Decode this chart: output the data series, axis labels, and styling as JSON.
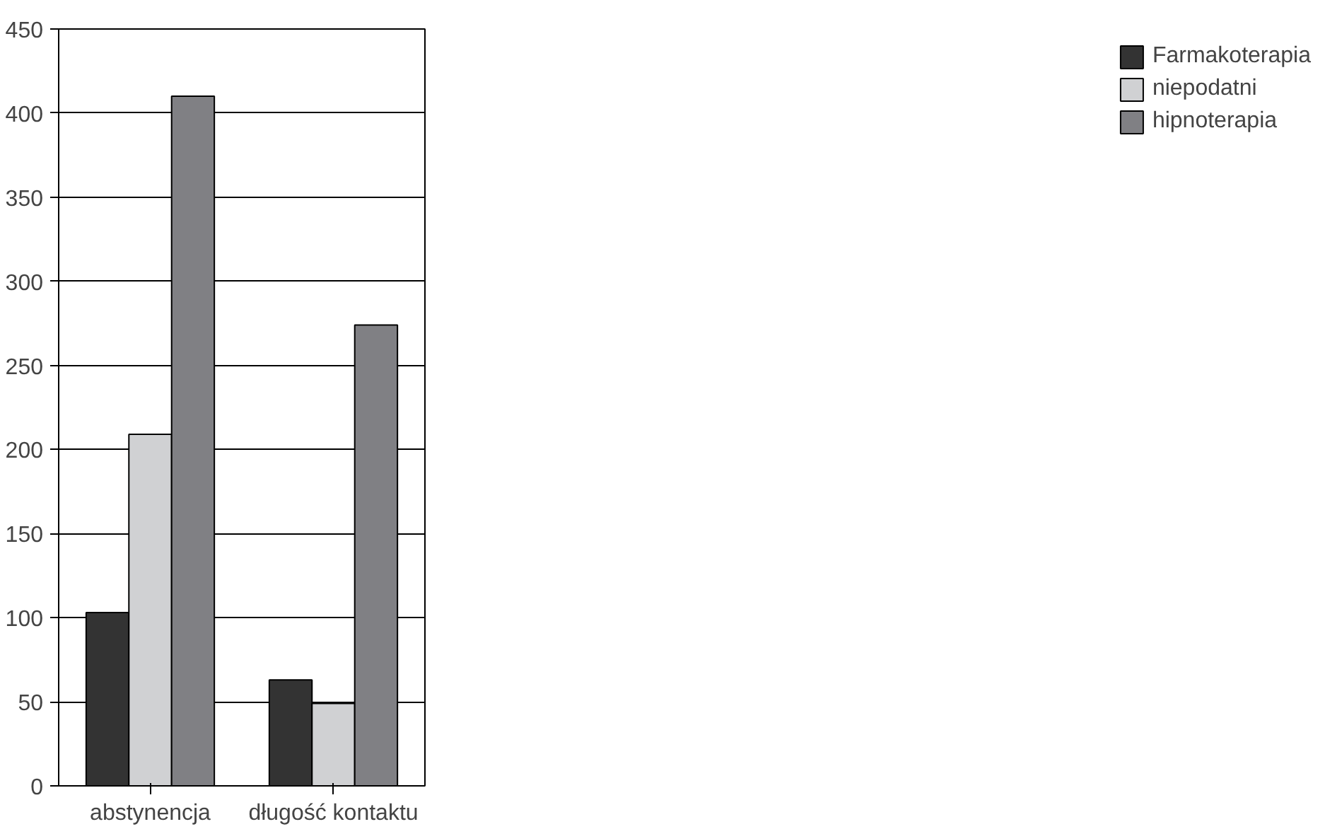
{
  "chart_data": {
    "type": "bar",
    "categories": [
      "abstynencja",
      "długość kontaktu"
    ],
    "series": [
      {
        "name": "Farmakoterapia",
        "color": "#333333",
        "values": [
          103,
          63
        ]
      },
      {
        "name": "niepodatni",
        "color": "#d0d1d3",
        "values": [
          209,
          49
        ]
      },
      {
        "name": "hipnoterapia",
        "color": "#808084",
        "values": [
          410,
          274
        ]
      }
    ],
    "ylim": [
      0,
      450
    ],
    "yticks": [
      0,
      50,
      100,
      150,
      200,
      250,
      300,
      350,
      400,
      450
    ],
    "grid": "y",
    "legend": "right"
  }
}
